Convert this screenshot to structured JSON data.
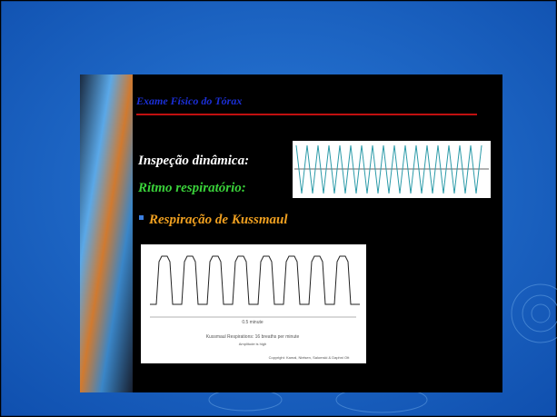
{
  "slide": {
    "title": "Exame Físico do Tórax",
    "lines": [
      "Inspeção dinâmica:",
      "Ritmo respiratório:",
      "Respiração de Kussmaul"
    ],
    "figure": {
      "scale": "0.5 minute",
      "caption": "Kussmaul Respirations: 16 breaths per minute",
      "note": "Amplitude is high",
      "copyright": "Copyright: Kamal, Nielsen, Salomski & Daphni Ott"
    }
  }
}
